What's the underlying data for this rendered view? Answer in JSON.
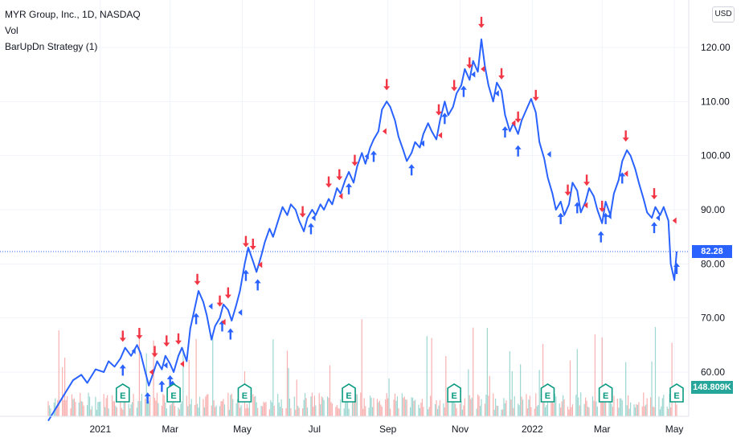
{
  "legend": {
    "title": "MYR Group, Inc., 1D, NASDAQ",
    "indicator_vol": "Vol",
    "indicator_strategy": "BarUpDn Strategy (1)"
  },
  "currency": "USD",
  "colors": {
    "line": "#2962ff",
    "long_arrow": "#2962ff",
    "short_arrow": "#f23645",
    "vol_up": "#26a69a",
    "vol_down": "#ef5350",
    "earnings": "#089981",
    "last_price": "#2962ff",
    "volume_badge": "#26a69a",
    "grid": "#f0f3fa"
  },
  "last_price_label": "82.28",
  "volume_label": "148.809K",
  "earnings_marker_text": "E",
  "chart_data": {
    "type": "line",
    "title": "MYR Group, Inc., 1D, NASDAQ",
    "xlabel": "",
    "ylabel": "",
    "ylim": [
      50.8,
      124.7
    ],
    "grid": true,
    "y_ticks": [
      "120.00",
      "110.00",
      "100.00",
      "90.00",
      "80.00",
      "70.00",
      "60.00"
    ],
    "x_ticks": [
      "2021",
      "Mar",
      "May",
      "Jul",
      "Sep",
      "Nov",
      "2022",
      "Mar",
      "May"
    ],
    "x_tick_dates": [
      "2021-01-01",
      "2021-03-01",
      "2021-05-01",
      "2021-07-01",
      "2021-09-01",
      "2021-11-01",
      "2022-01-01",
      "2022-03-01",
      "2022-05-01"
    ],
    "x_range": [
      "2020-11-18",
      "2022-05-03"
    ],
    "series": [
      {
        "values": [
          [
            "2020-11-18",
            51.0
          ],
          [
            "2020-11-25",
            53.5
          ],
          [
            "2020-12-02",
            56.0
          ],
          [
            "2020-12-09",
            58.5
          ],
          [
            "2020-12-16",
            59.5
          ],
          [
            "2020-12-21",
            58.0
          ],
          [
            "2020-12-28",
            60.5
          ],
          [
            "2021-01-04",
            60.0
          ],
          [
            "2021-01-08",
            62.0
          ],
          [
            "2021-01-13",
            61.0
          ],
          [
            "2021-01-18",
            62.5
          ],
          [
            "2021-01-22",
            64.5
          ],
          [
            "2021-01-27",
            63.0
          ],
          [
            "2021-02-01",
            65.0
          ],
          [
            "2021-02-04",
            63.5
          ],
          [
            "2021-02-08",
            60.0
          ],
          [
            "2021-02-11",
            57.5
          ],
          [
            "2021-02-15",
            60.0
          ],
          [
            "2021-02-18",
            62.0
          ],
          [
            "2021-02-22",
            60.5
          ],
          [
            "2021-02-25",
            63.0
          ],
          [
            "2021-03-01",
            61.5
          ],
          [
            "2021-03-04",
            60.0
          ],
          [
            "2021-03-08",
            63.0
          ],
          [
            "2021-03-11",
            64.5
          ],
          [
            "2021-03-15",
            62.0
          ],
          [
            "2021-03-18",
            68.0
          ],
          [
            "2021-03-22",
            72.0
          ],
          [
            "2021-03-25",
            75.0
          ],
          [
            "2021-03-29",
            73.0
          ],
          [
            "2021-04-01",
            70.5
          ],
          [
            "2021-04-05",
            66.0
          ],
          [
            "2021-04-08",
            68.5
          ],
          [
            "2021-04-12",
            70.0
          ],
          [
            "2021-04-15",
            72.5
          ],
          [
            "2021-04-19",
            71.5
          ],
          [
            "2021-04-22",
            69.5
          ],
          [
            "2021-04-26",
            72.5
          ],
          [
            "2021-04-29",
            75.0
          ],
          [
            "2021-05-03",
            80.0
          ],
          [
            "2021-05-06",
            83.0
          ],
          [
            "2021-05-10",
            80.5
          ],
          [
            "2021-05-13",
            78.5
          ],
          [
            "2021-05-17",
            81.5
          ],
          [
            "2021-05-20",
            84.0
          ],
          [
            "2021-05-24",
            86.5
          ],
          [
            "2021-05-27",
            85.0
          ],
          [
            "2021-06-01",
            88.5
          ],
          [
            "2021-06-04",
            90.5
          ],
          [
            "2021-06-08",
            89.0
          ],
          [
            "2021-06-11",
            91.0
          ],
          [
            "2021-06-15",
            90.0
          ],
          [
            "2021-06-18",
            88.0
          ],
          [
            "2021-06-22",
            86.0
          ],
          [
            "2021-06-25",
            88.5
          ],
          [
            "2021-06-29",
            90.0
          ],
          [
            "2021-07-02",
            89.0
          ],
          [
            "2021-07-06",
            91.0
          ],
          [
            "2021-07-09",
            90.0
          ],
          [
            "2021-07-13",
            92.0
          ],
          [
            "2021-07-16",
            91.0
          ],
          [
            "2021-07-20",
            94.0
          ],
          [
            "2021-07-23",
            93.0
          ],
          [
            "2021-07-27",
            95.5
          ],
          [
            "2021-07-30",
            97.0
          ],
          [
            "2021-08-03",
            95.0
          ],
          [
            "2021-08-06",
            98.0
          ],
          [
            "2021-08-10",
            100.5
          ],
          [
            "2021-08-13",
            98.5
          ],
          [
            "2021-08-17",
            101.5
          ],
          [
            "2021-08-20",
            103.0
          ],
          [
            "2021-08-24",
            104.5
          ],
          [
            "2021-08-27",
            108.5
          ],
          [
            "2021-08-31",
            110.0
          ],
          [
            "2021-09-03",
            109.0
          ],
          [
            "2021-09-07",
            106.5
          ],
          [
            "2021-09-10",
            103.5
          ],
          [
            "2021-09-14",
            101.0
          ],
          [
            "2021-09-17",
            99.0
          ],
          [
            "2021-09-21",
            100.5
          ],
          [
            "2021-09-24",
            102.5
          ],
          [
            "2021-09-28",
            101.5
          ],
          [
            "2021-10-01",
            104.0
          ],
          [
            "2021-10-05",
            106.0
          ],
          [
            "2021-10-08",
            104.5
          ],
          [
            "2021-10-12",
            103.0
          ],
          [
            "2021-10-15",
            106.5
          ],
          [
            "2021-10-19",
            110.0
          ],
          [
            "2021-10-22",
            107.5
          ],
          [
            "2021-10-26",
            109.0
          ],
          [
            "2021-10-29",
            111.5
          ],
          [
            "2021-11-02",
            113.0
          ],
          [
            "2021-11-05",
            116.0
          ],
          [
            "2021-11-09",
            114.0
          ],
          [
            "2021-11-12",
            117.5
          ],
          [
            "2021-11-16",
            115.5
          ],
          [
            "2021-11-19",
            121.5
          ],
          [
            "2021-11-22",
            116.5
          ],
          [
            "2021-11-25",
            113.0
          ],
          [
            "2021-11-29",
            110.0
          ],
          [
            "2021-12-02",
            113.5
          ],
          [
            "2021-12-06",
            112.0
          ],
          [
            "2021-12-09",
            107.5
          ],
          [
            "2021-12-13",
            104.5
          ],
          [
            "2021-12-16",
            106.0
          ],
          [
            "2021-12-20",
            104.0
          ],
          [
            "2021-12-23",
            106.5
          ],
          [
            "2021-12-28",
            109.0
          ],
          [
            "2021-12-31",
            110.5
          ],
          [
            "2022-01-04",
            108.0
          ],
          [
            "2022-01-07",
            102.5
          ],
          [
            "2022-01-11",
            99.5
          ],
          [
            "2022-01-14",
            96.0
          ],
          [
            "2022-01-18",
            93.0
          ],
          [
            "2022-01-21",
            90.0
          ],
          [
            "2022-01-25",
            91.5
          ],
          [
            "2022-01-28",
            89.0
          ],
          [
            "2022-02-01",
            91.0
          ],
          [
            "2022-02-04",
            95.0
          ],
          [
            "2022-02-08",
            93.5
          ],
          [
            "2022-02-11",
            89.5
          ],
          [
            "2022-02-15",
            91.5
          ],
          [
            "2022-02-18",
            94.0
          ],
          [
            "2022-02-22",
            92.5
          ],
          [
            "2022-02-25",
            90.0
          ],
          [
            "2022-03-01",
            87.5
          ],
          [
            "2022-03-04",
            91.5
          ],
          [
            "2022-03-08",
            89.0
          ],
          [
            "2022-03-11",
            93.0
          ],
          [
            "2022-03-15",
            95.5
          ],
          [
            "2022-03-18",
            99.0
          ],
          [
            "2022-03-22",
            101.0
          ],
          [
            "2022-03-25",
            100.0
          ],
          [
            "2022-03-29",
            97.5
          ],
          [
            "2022-04-01",
            95.0
          ],
          [
            "2022-04-05",
            92.0
          ],
          [
            "2022-04-08",
            89.5
          ],
          [
            "2022-04-12",
            88.5
          ],
          [
            "2022-04-15",
            90.5
          ],
          [
            "2022-04-19",
            89.0
          ],
          [
            "2022-04-22",
            90.5
          ],
          [
            "2022-04-26",
            88.0
          ],
          [
            "2022-04-28",
            80.0
          ],
          [
            "2022-05-01",
            77.0
          ],
          [
            "2022-05-03",
            82.28
          ]
        ]
      }
    ],
    "long_entries": [
      "2021-01-20",
      "2021-02-10",
      "2021-02-22",
      "2021-03-01",
      "2021-03-03",
      "2021-03-23",
      "2021-04-14",
      "2021-04-21",
      "2021-05-04",
      "2021-05-14",
      "2021-06-28",
      "2021-07-30",
      "2021-08-20",
      "2021-09-21",
      "2021-10-19",
      "2021-11-04",
      "2021-12-09",
      "2021-12-20",
      "2022-01-25",
      "2022-02-08",
      "2022-02-28",
      "2022-03-04",
      "2022-03-18",
      "2022-04-14",
      "2022-05-03"
    ],
    "short_entries": [
      "2021-01-20",
      "2021-02-03",
      "2021-02-16",
      "2021-02-26",
      "2021-03-08",
      "2021-03-24",
      "2021-04-12",
      "2021-04-19",
      "2021-05-04",
      "2021-05-10",
      "2021-06-21",
      "2021-07-13",
      "2021-07-22",
      "2021-08-04",
      "2021-08-31",
      "2021-10-14",
      "2021-10-27",
      "2021-11-09",
      "2021-11-19",
      "2021-12-06",
      "2021-12-20",
      "2022-01-04",
      "2022-01-31",
      "2022-02-16",
      "2022-03-01",
      "2022-03-21",
      "2022-04-14"
    ],
    "close_marks": [
      "2021-01-24",
      "2021-02-08",
      "2021-02-20",
      "2021-03-06",
      "2021-03-30",
      "2021-04-10",
      "2021-04-24",
      "2021-05-11",
      "2021-06-25",
      "2021-07-18",
      "2021-08-09",
      "2021-08-24",
      "2021-09-25",
      "2021-10-10",
      "2021-11-07",
      "2021-11-15",
      "2021-11-27",
      "2021-12-11",
      "2022-01-10",
      "2022-02-10",
      "2022-03-02",
      "2022-03-16",
      "2022-04-12",
      "2022-04-26"
    ],
    "earnings_dates": [
      "2021-01-20",
      "2021-03-04",
      "2021-05-03",
      "2021-07-30",
      "2021-10-27",
      "2022-01-14",
      "2022-03-04",
      "2022-05-03"
    ],
    "volume": {
      "ylim": [
        0,
        2000
      ],
      "seed_description_free": true
    }
  }
}
